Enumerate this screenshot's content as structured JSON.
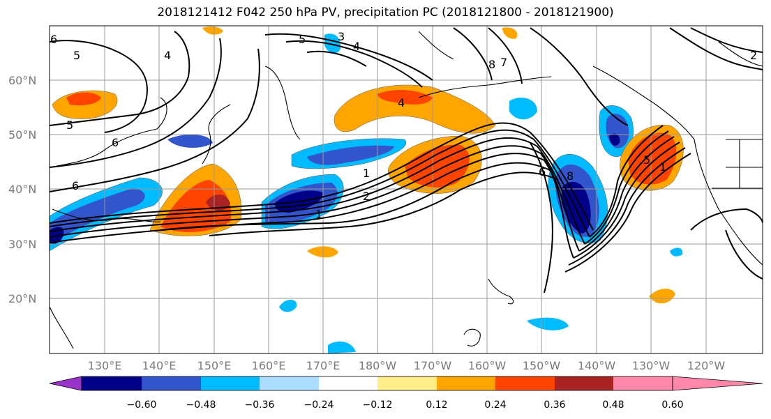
{
  "title": "2018121412 F042 250 hPa PV, precipitation PC (2018121800 - 2018121900)",
  "lat_labels": [
    "60°N",
    "50°N",
    "40°N",
    "30°N",
    "20°N"
  ],
  "lon_labels": [
    "130°E",
    "140°E",
    "150°E",
    "160°E",
    "170°E",
    "180°W",
    "170°W",
    "160°W",
    "150°W",
    "140°W",
    "130°W",
    "120°W"
  ],
  "colorbar": {
    "ticks": [
      "−0.60",
      "−0.48",
      "−0.36",
      "−0.24",
      "−0.12",
      "0.12",
      "0.24",
      "0.36",
      "0.48",
      "0.60"
    ],
    "colors": [
      "#9933cc",
      "#000088",
      "#3355cc",
      "#00bbff",
      "#aaddff",
      "#ffffff",
      "#ffee88",
      "#ffa500",
      "#ff4400",
      "#aa2222",
      "#ff88aa"
    ]
  },
  "contour_labels": [
    "6",
    "5",
    "5",
    "6",
    "6",
    "4",
    "3",
    "5",
    "4",
    "4",
    "1",
    "1",
    "2",
    "1",
    "6",
    "8",
    "8",
    "7",
    "5",
    "2"
  ]
}
